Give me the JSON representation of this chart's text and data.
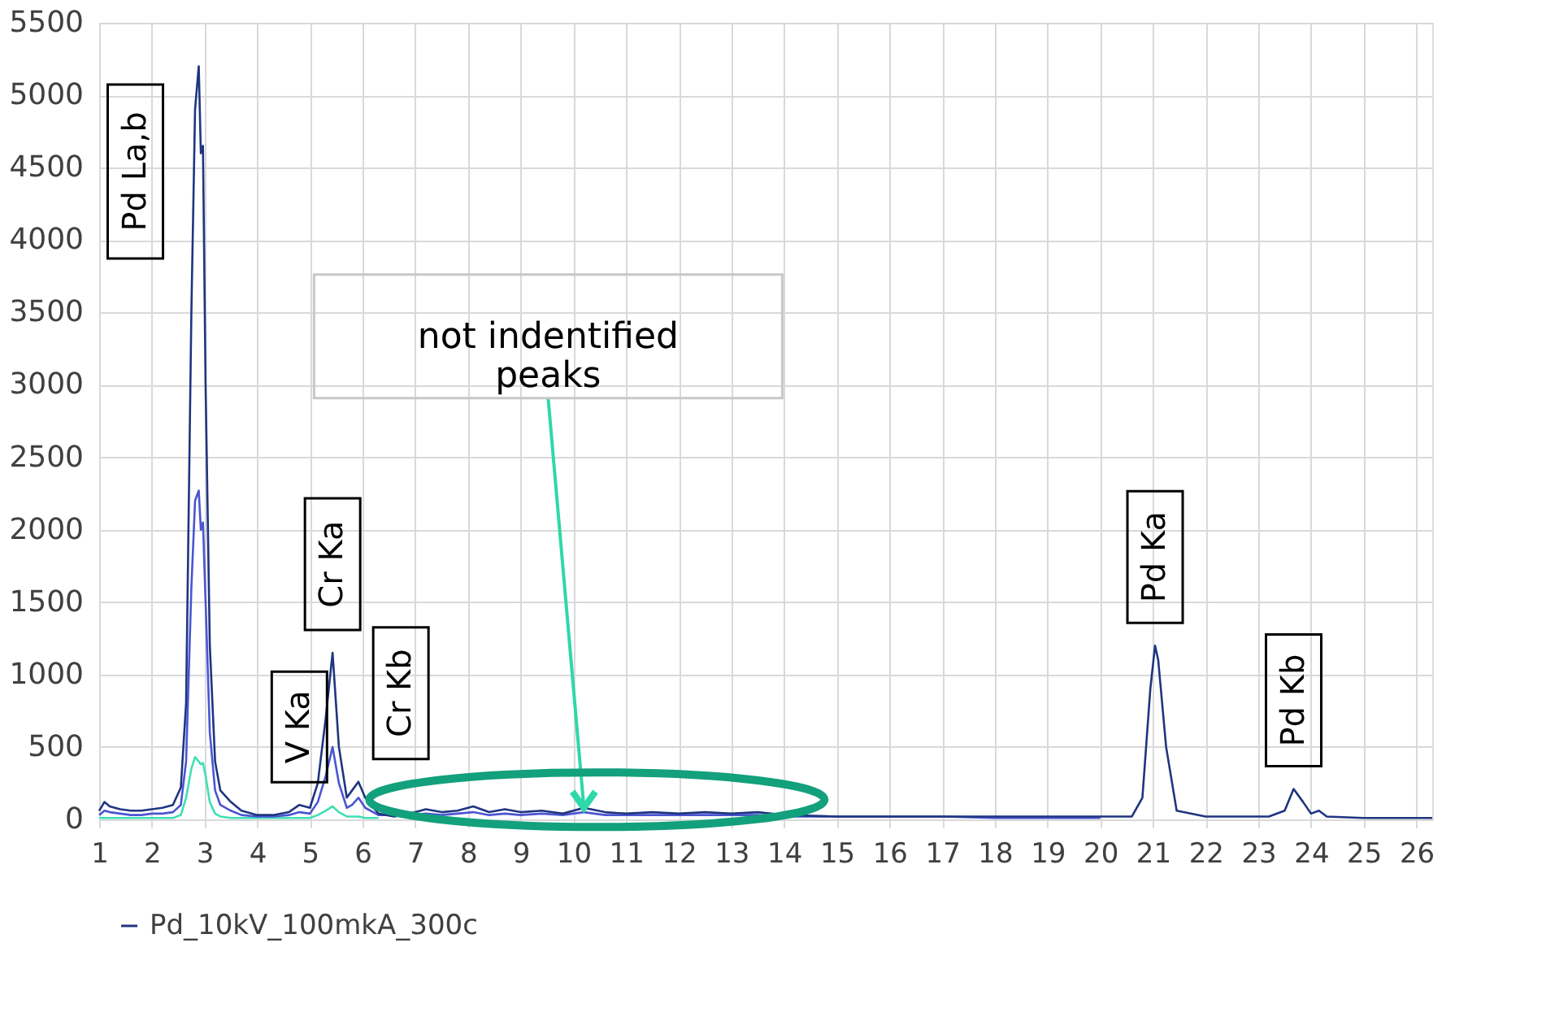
{
  "chart_data": {
    "type": "line",
    "grid": true,
    "legend": "bottom",
    "xlim": [
      1,
      26.3
    ],
    "xticks": [
      1,
      2,
      3,
      4,
      5,
      6,
      7,
      8,
      9,
      10,
      11,
      12,
      13,
      14,
      15,
      16,
      17,
      18,
      19,
      20,
      21,
      22,
      23,
      24,
      25,
      26
    ],
    "ylim": [
      0,
      5500
    ],
    "yticks": [
      0,
      500,
      1000,
      1500,
      2000,
      2500,
      3000,
      3500,
      4000,
      4500,
      5000,
      5500
    ],
    "x": [
      1.0,
      1.1,
      1.2,
      1.4,
      1.6,
      1.8,
      2.0,
      2.2,
      2.4,
      2.55,
      2.65,
      2.75,
      2.82,
      2.89,
      2.93,
      2.97,
      3.02,
      3.1,
      3.2,
      3.3,
      3.5,
      3.7,
      4.0,
      4.3,
      4.6,
      4.8,
      5.0,
      5.15,
      5.3,
      5.43,
      5.55,
      5.7,
      5.8,
      5.92,
      6.05,
      6.3,
      6.6,
      6.9,
      7.2,
      7.5,
      7.8,
      8.1,
      8.4,
      8.7,
      9.0,
      9.4,
      9.8,
      10.2,
      10.6,
      11.0,
      11.5,
      12.0,
      12.5,
      13.0,
      13.5,
      14.0,
      15,
      16,
      17,
      18,
      19,
      20,
      20.6,
      20.8,
      20.95,
      21.04,
      21.1,
      21.25,
      21.45,
      22,
      22.5,
      23.2,
      23.5,
      23.67,
      23.85,
      24.0,
      24.15,
      24.3,
      25,
      26,
      26.3
    ],
    "series": [
      {
        "color": "#3de0b4",
        "values": [
          10,
          10,
          10,
          10,
          10,
          10,
          10,
          10,
          10,
          30,
          150,
          350,
          430,
          400,
          380,
          390,
          300,
          120,
          40,
          20,
          10,
          10,
          10,
          10,
          10,
          10,
          10,
          30,
          60,
          90,
          50,
          20,
          20,
          20,
          10,
          10,
          null,
          null,
          null,
          null,
          null,
          null,
          null,
          null,
          null,
          null,
          null,
          null,
          null,
          null,
          null,
          null,
          null,
          null,
          null,
          null,
          null,
          null,
          null,
          null,
          null,
          null,
          null,
          null,
          null,
          null,
          null,
          null,
          null,
          null,
          null,
          null,
          null,
          null,
          null,
          null,
          null,
          null,
          null,
          null,
          null
        ]
      },
      {
        "color": "#4b55d2",
        "values": [
          30,
          60,
          50,
          40,
          30,
          30,
          40,
          40,
          50,
          100,
          400,
          1600,
          2200,
          2270,
          2000,
          2050,
          1500,
          600,
          200,
          100,
          60,
          30,
          20,
          20,
          30,
          50,
          40,
          120,
          300,
          500,
          250,
          80,
          100,
          150,
          80,
          30,
          30,
          30,
          40,
          30,
          40,
          50,
          30,
          40,
          30,
          40,
          30,
          50,
          30,
          30,
          30,
          30,
          30,
          30,
          30,
          20,
          20,
          20,
          20,
          10,
          10,
          10,
          null,
          null,
          null,
          null,
          null,
          null,
          null,
          null,
          null,
          null,
          null,
          null,
          null,
          null,
          null,
          null,
          null,
          null,
          null
        ]
      },
      {
        "name": "Pd_10kV_100mkA_300c",
        "color": "#1f3580",
        "values": [
          60,
          120,
          90,
          70,
          60,
          60,
          70,
          80,
          100,
          220,
          800,
          3500,
          4900,
          5200,
          4600,
          4650,
          3000,
          1200,
          400,
          200,
          120,
          60,
          30,
          30,
          50,
          100,
          80,
          250,
          700,
          1150,
          500,
          150,
          200,
          260,
          150,
          40,
          20,
          40,
          70,
          50,
          60,
          90,
          50,
          70,
          50,
          60,
          40,
          80,
          50,
          40,
          50,
          40,
          50,
          40,
          50,
          30,
          20,
          20,
          20,
          20,
          20,
          20,
          20,
          150,
          900,
          1200,
          1100,
          500,
          60,
          20,
          20,
          20,
          60,
          210,
          120,
          40,
          60,
          20,
          10,
          10,
          10
        ]
      }
    ],
    "annotations": [
      {
        "text": "Pd La,b",
        "x": 2.89,
        "y": 5200
      },
      {
        "text": "V Ka",
        "x": 4.8,
        "y": 100
      },
      {
        "text": "Cr Ka",
        "x": 5.43,
        "y": 1150
      },
      {
        "text": "Cr Kb",
        "x": 5.92,
        "y": 260
      },
      {
        "text": "Pd Ka",
        "x": 21.04,
        "y": 1200
      },
      {
        "text": "Pd Kb",
        "x": 23.67,
        "y": 210
      },
      {
        "text": "not indentified\npeaks",
        "x": 10.2,
        "y": 80
      }
    ]
  }
}
